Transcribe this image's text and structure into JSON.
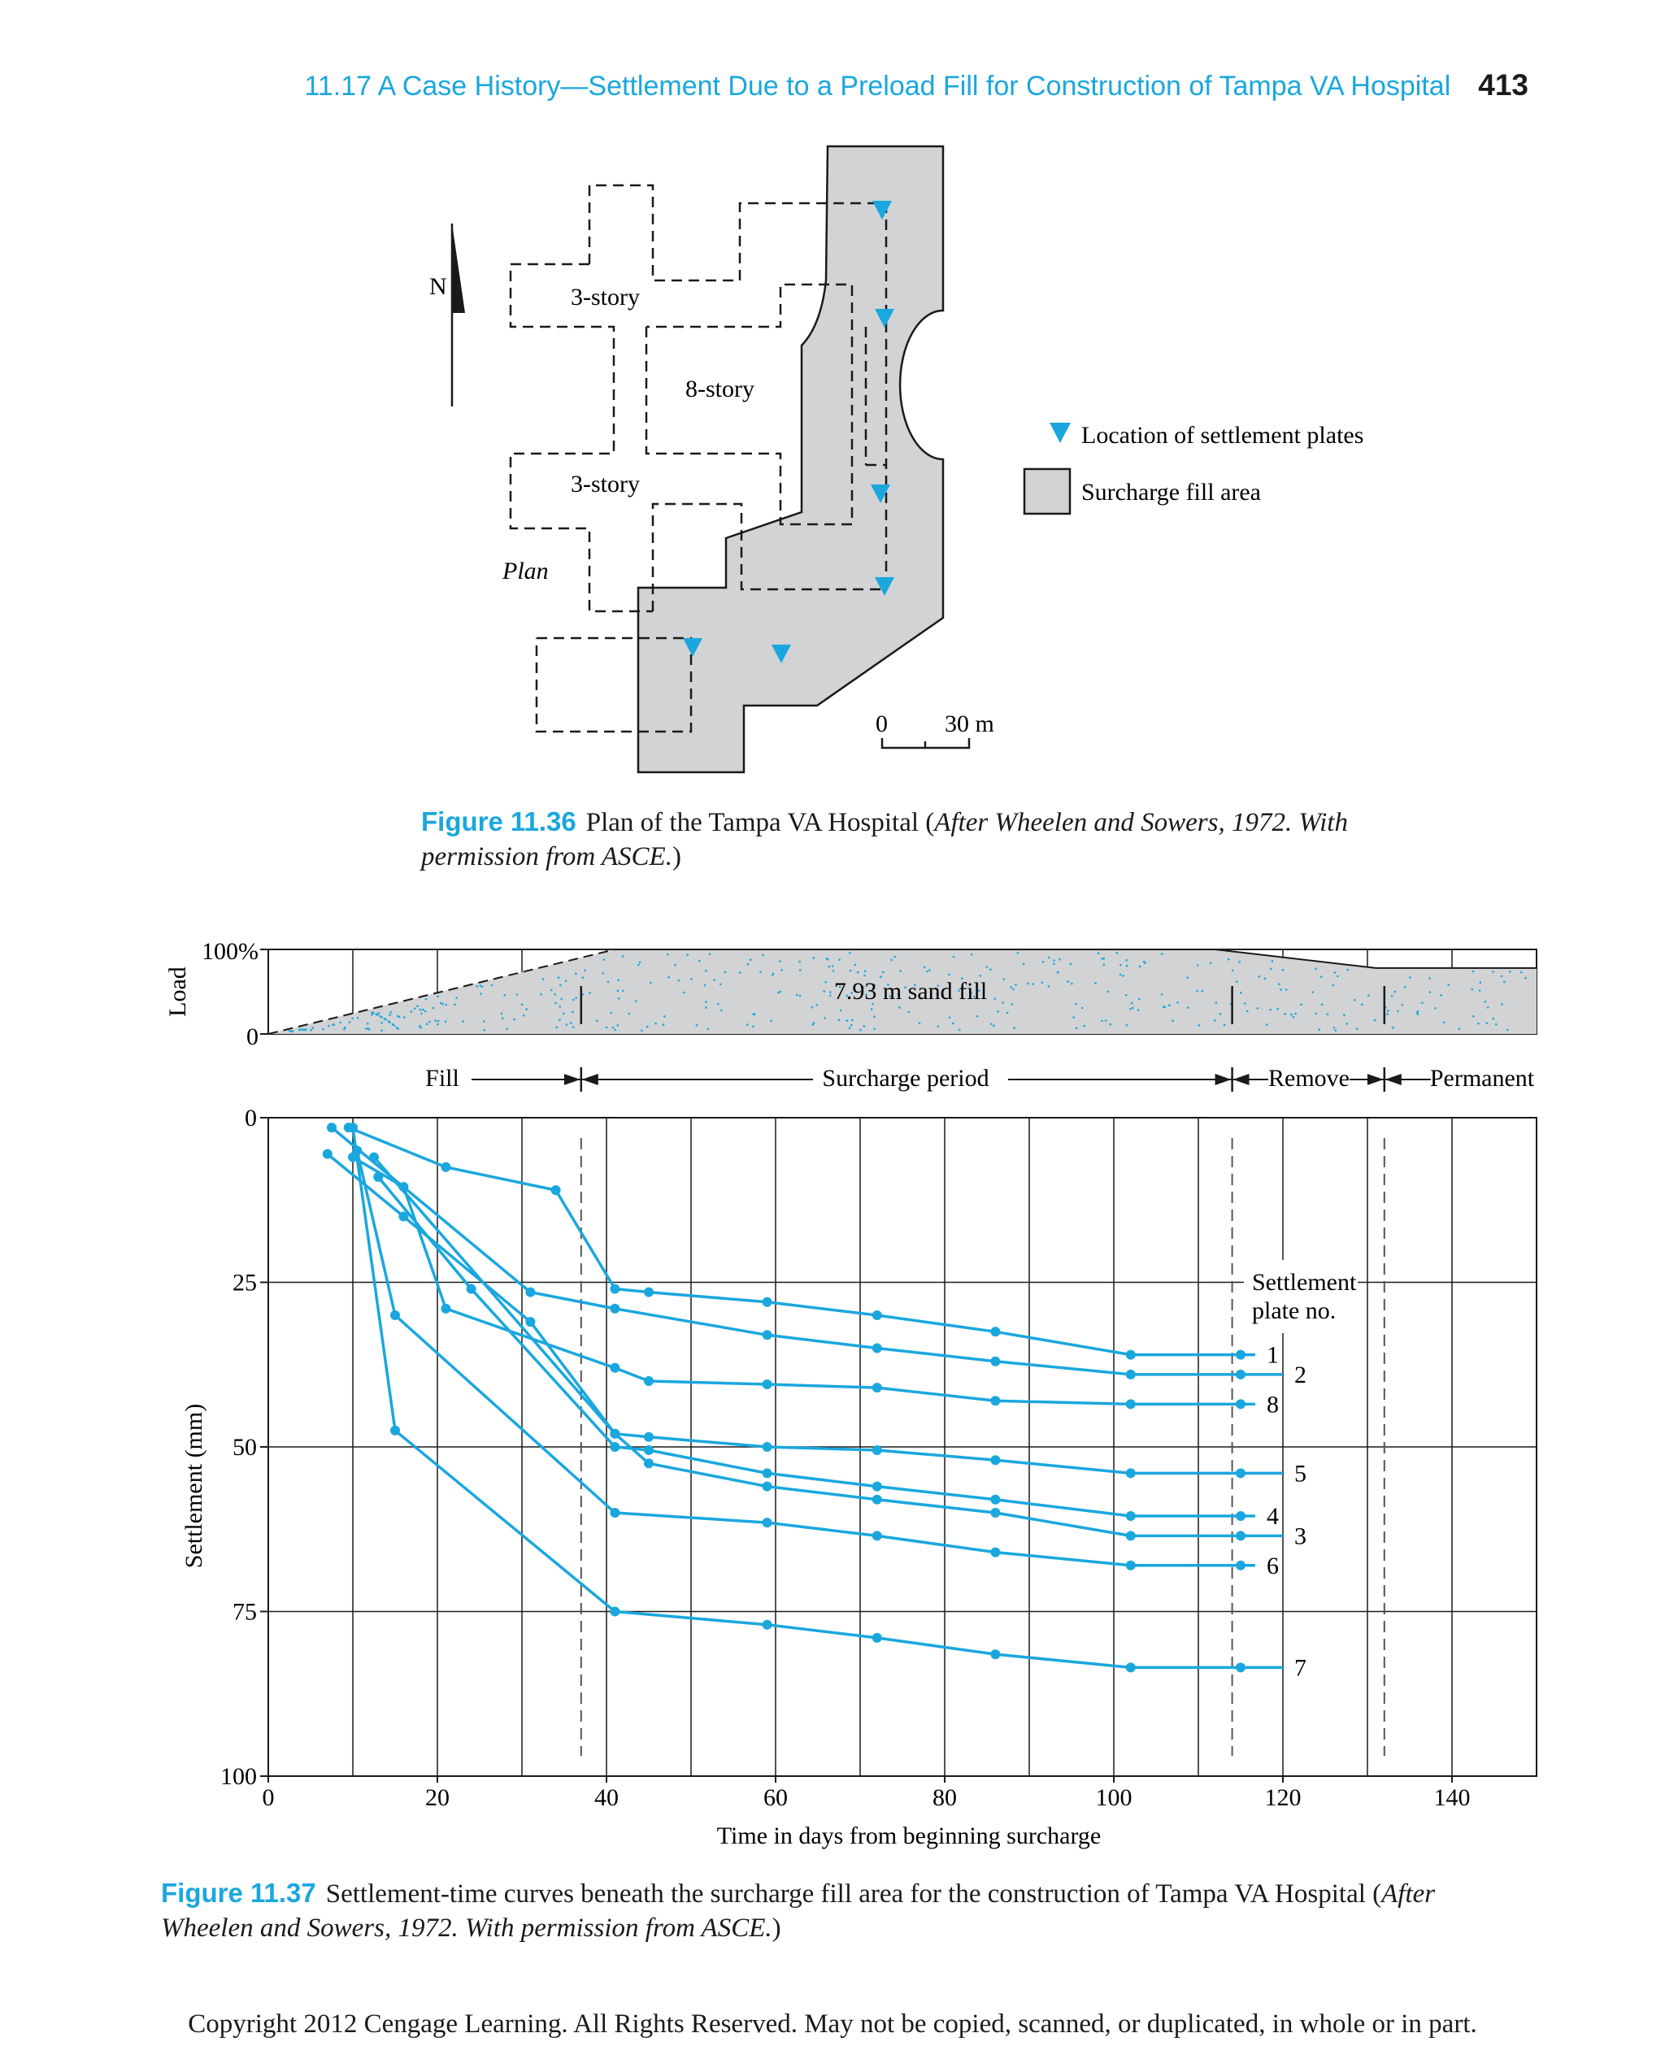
{
  "header": {
    "running_title": "11.17 A Case History—Settlement Due to a Preload Fill for Construction of Tampa VA Hospital",
    "page_number": "413"
  },
  "figure_plan": {
    "north_label": "N",
    "buildings": [
      {
        "label": "3-story"
      },
      {
        "label": "8-story"
      },
      {
        "label": "3-story"
      }
    ],
    "plan_label": "Plan",
    "legend": {
      "settlement_plates": "Location of settlement plates",
      "surcharge_area": "Surcharge fill area"
    },
    "scale": {
      "start": "0",
      "end": "30 m"
    },
    "colors": {
      "fill": "#d2d3d5",
      "plate_marker": "#1aa7de"
    },
    "caption": {
      "label": "Figure 11.36",
      "text": "Plan of the Tampa VA Hospital (",
      "italic": "After Wheelen and Sowers, 1972. With permission from ASCE.",
      "end": ")"
    }
  },
  "chart_data": {
    "type": "line",
    "xlabel": "Time in days from beginning surcharge",
    "ylabel": "Settlement (mm)",
    "xlim": [
      0,
      150
    ],
    "ylim": [
      0,
      100
    ],
    "y_inverted": true,
    "x_ticks": [
      "0",
      "20",
      "40",
      "60",
      "80",
      "100",
      "120",
      "140"
    ],
    "y_ticks": [
      "0",
      "25",
      "50",
      "75",
      "100"
    ],
    "grid": true,
    "line_color": "#1aa7de",
    "legend_title": "Settlement plate no.",
    "load_panel": {
      "ylabel": "Load",
      "y_ticks": [
        "100%",
        "0"
      ],
      "fill_label": "7.93 m sand fill",
      "profile": [
        {
          "x": 0,
          "y": 0
        },
        {
          "x": 41,
          "y": 100
        },
        {
          "x": 112,
          "y": 100
        },
        {
          "x": 131,
          "y": 78
        },
        {
          "x": 150,
          "y": 78
        }
      ],
      "colors": {
        "fill": "#d2d3d5",
        "speckle": "#1aa7de"
      }
    },
    "phases": [
      "Fill",
      "Surcharge period",
      "Remove",
      "Permanent"
    ],
    "phase_boundaries": [
      37,
      114,
      132
    ],
    "series": [
      {
        "name": "1",
        "x": [
          9.5,
          21,
          34,
          41,
          45,
          59,
          72,
          86,
          102,
          115
        ],
        "y": [
          1.5,
          7.5,
          11,
          26,
          26.5,
          28,
          30,
          32.5,
          36,
          36
        ]
      },
      {
        "name": "2",
        "x": [
          7.5,
          31,
          41,
          59,
          72,
          86,
          102,
          115,
          120
        ],
        "y": [
          1.5,
          26.5,
          29,
          33,
          35,
          37,
          39,
          39,
          39
        ]
      },
      {
        "name": "8",
        "x": [
          10,
          16,
          21,
          41,
          45,
          59,
          72,
          86,
          102,
          115
        ],
        "y": [
          6,
          10.5,
          29,
          38,
          40,
          40.5,
          41,
          43,
          43.5,
          43.5
        ]
      },
      {
        "name": "5",
        "x": [
          12.5,
          41,
          45,
          59,
          72,
          86,
          102,
          115,
          120
        ],
        "y": [
          6,
          48,
          48.5,
          50,
          50.5,
          52,
          54,
          54,
          54
        ]
      },
      {
        "name": "4",
        "x": [
          13,
          24,
          41,
          45,
          59,
          72,
          86,
          102,
          115
        ],
        "y": [
          9,
          26,
          50,
          50.5,
          54,
          56,
          58,
          60.5,
          60.5
        ]
      },
      {
        "name": "3",
        "x": [
          7,
          16,
          31,
          41,
          45,
          59,
          72,
          86,
          102,
          115,
          120
        ],
        "y": [
          5.5,
          15,
          31,
          48,
          52.5,
          56,
          58,
          60,
          63.5,
          63.5,
          63.5
        ]
      },
      {
        "name": "6",
        "x": [
          10.5,
          15,
          41,
          59,
          72,
          86,
          102,
          115
        ],
        "y": [
          5,
          30,
          60,
          61.5,
          63.5,
          66,
          68,
          68
        ]
      },
      {
        "name": "7",
        "x": [
          10,
          15,
          41,
          59,
          72,
          86,
          102,
          115,
          120
        ],
        "y": [
          1.5,
          47.5,
          75,
          77,
          79,
          81.5,
          83.5,
          83.5,
          83.5
        ]
      }
    ],
    "caption": {
      "label": "Figure 11.37",
      "text": "Settlement-time curves beneath the surcharge fill area for the construction of Tampa VA Hospital (",
      "italic": "After  Wheelen and Sowers, 1972. With permission from ASCE.",
      "end": ")"
    }
  },
  "footer": {
    "copyright": "Copyright 2012 Cengage Learning. All Rights Reserved. May not be copied, scanned, or duplicated, in whole or in part."
  }
}
